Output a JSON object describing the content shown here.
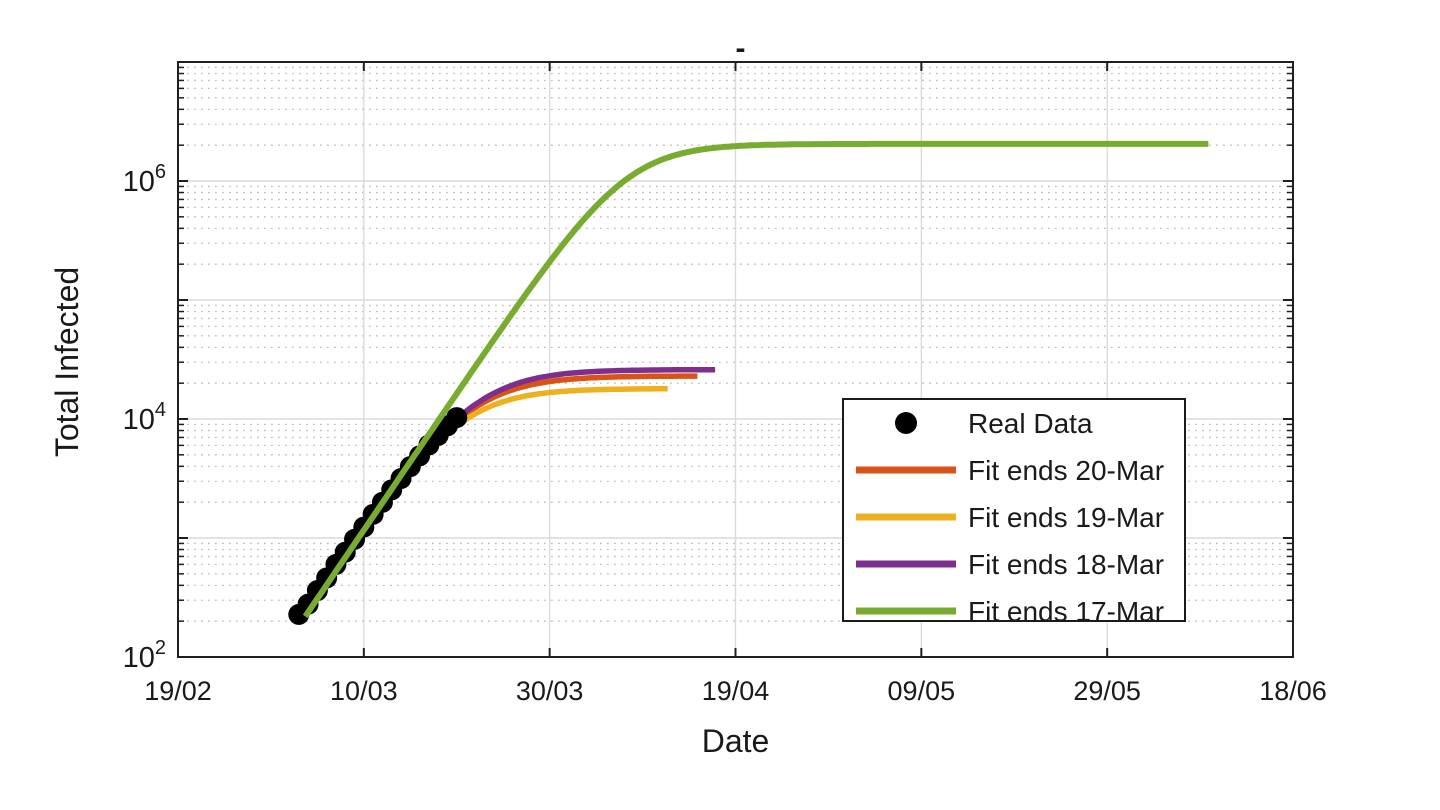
{
  "figure": {
    "title_mark": "-",
    "background": "#ffffff",
    "axis_color": "#1f1f1f",
    "grid_major_color": "#dadada",
    "grid_minor_color": "#bfbfbf",
    "font_color": "#1a1a1a"
  },
  "axes": {
    "xlabel": "Date",
    "ylabel": "Total Infected",
    "x_tick_labels": [
      "19/02",
      "10/03",
      "30/03",
      "19/04",
      "09/05",
      "29/05",
      "18/06"
    ],
    "x_tick_days": [
      0,
      20,
      40,
      60,
      80,
      100,
      120
    ],
    "x_range_days": [
      0,
      120
    ],
    "y_scale": "log10",
    "y_labeled_exponents": [
      2,
      4,
      6
    ],
    "y_exponent_range": [
      2,
      7
    ],
    "x_start_date": "19/02",
    "grid": "major solid + minor dotted (log)"
  },
  "legend": {
    "position": "lower-right-inside",
    "entries": [
      {
        "label": "Real Data",
        "marker": "dot",
        "color": "#000000"
      },
      {
        "label": "Fit ends 20-Mar",
        "marker": "line",
        "color": "#d95319"
      },
      {
        "label": "Fit ends 19-Mar",
        "marker": "line",
        "color": "#edb120"
      },
      {
        "label": "Fit ends 18-Mar",
        "marker": "line",
        "color": "#7e2f8e"
      },
      {
        "label": "Fit ends 17-Mar",
        "marker": "line",
        "color": "#77ac30"
      }
    ]
  },
  "chart_data": {
    "type": "line",
    "title": "-",
    "xlabel": "Date",
    "ylabel": "Total Infected",
    "x_unit": "days since 19/02 (axis shown as dd/mm)",
    "xlim_days": [
      0,
      120
    ],
    "ylim": [
      100,
      10000000
    ],
    "yscale": "log",
    "legend_position": "lower right inside",
    "series": [
      {
        "name": "Real Data",
        "type": "scatter",
        "color": "#000000",
        "points": [
          [
            13,
            228
          ],
          [
            14,
            278
          ],
          [
            15,
            362
          ],
          [
            16,
            462
          ],
          [
            17,
            600
          ],
          [
            18,
            760
          ],
          [
            19,
            975
          ],
          [
            20,
            1235
          ],
          [
            21,
            1580
          ],
          [
            22,
            1995
          ],
          [
            23,
            2540
          ],
          [
            24,
            3160
          ],
          [
            25,
            3980
          ],
          [
            26,
            4900
          ],
          [
            27,
            6050
          ],
          [
            28,
            7280
          ],
          [
            29,
            8760
          ],
          [
            30,
            10280
          ]
        ]
      },
      {
        "name": "Fit ends 20-Mar",
        "type": "logistic",
        "color": "#d95319",
        "K": 23000,
        "r": 0.25,
        "t0": 31.3,
        "t_range": [
          13.7,
          55.9
        ],
        "key_points": [
          [
            14,
            300
          ],
          [
            20,
            1290
          ],
          [
            25,
            3950
          ],
          [
            30,
            9650
          ],
          [
            35,
            16470
          ],
          [
            40,
            20650
          ],
          [
            45,
            22270
          ],
          [
            50,
            22790
          ],
          [
            56,
            22950
          ]
        ]
      },
      {
        "name": "Fit ends 19-Mar",
        "type": "logistic",
        "color": "#edb120",
        "K": 18000,
        "r": 0.26,
        "t0": 30.2,
        "t_range": [
          13.7,
          52.7
        ],
        "key_points": [
          [
            14,
            263
          ],
          [
            20,
            1190
          ],
          [
            25,
            3700
          ],
          [
            30,
            8770
          ],
          [
            35,
            13990
          ],
          [
            40,
            16690
          ],
          [
            45,
            17620
          ],
          [
            50,
            17900
          ],
          [
            53,
            17950
          ]
        ]
      },
      {
        "name": "Fit ends 18-Mar",
        "type": "logistic",
        "color": "#7e2f8e",
        "K": 26000,
        "r": 0.253,
        "t0": 31.85,
        "t_range": [
          13.7,
          57.8
        ],
        "key_points": [
          [
            14,
            281
          ],
          [
            20,
            1240
          ],
          [
            25,
            3900
          ],
          [
            30,
            10010
          ],
          [
            35,
            17920
          ],
          [
            40,
            23070
          ],
          [
            45,
            25100
          ],
          [
            50,
            25740
          ],
          [
            58,
            25970
          ]
        ]
      },
      {
        "name": "Fit ends 17-Mar",
        "type": "logistic",
        "color": "#77ac30",
        "K": 2050000,
        "r": 0.265,
        "t0": 48.2,
        "t_range": [
          13.7,
          110.9
        ],
        "key_points": [
          [
            14,
            240
          ],
          [
            20,
            1100
          ],
          [
            25,
            4300
          ],
          [
            30,
            16300
          ],
          [
            35,
            55700
          ],
          [
            40,
            209600
          ],
          [
            45,
            614700
          ],
          [
            50,
            1265000
          ],
          [
            55,
            1720000
          ],
          [
            60,
            1964000
          ],
          [
            70,
            2040000
          ],
          [
            90,
            2050000
          ],
          [
            111,
            2050000
          ]
        ]
      }
    ],
    "draw_order": [
      "Fit ends 20-Mar",
      "Fit ends 19-Mar",
      "Fit ends 18-Mar",
      "Real Data",
      "Fit ends 17-Mar"
    ]
  }
}
